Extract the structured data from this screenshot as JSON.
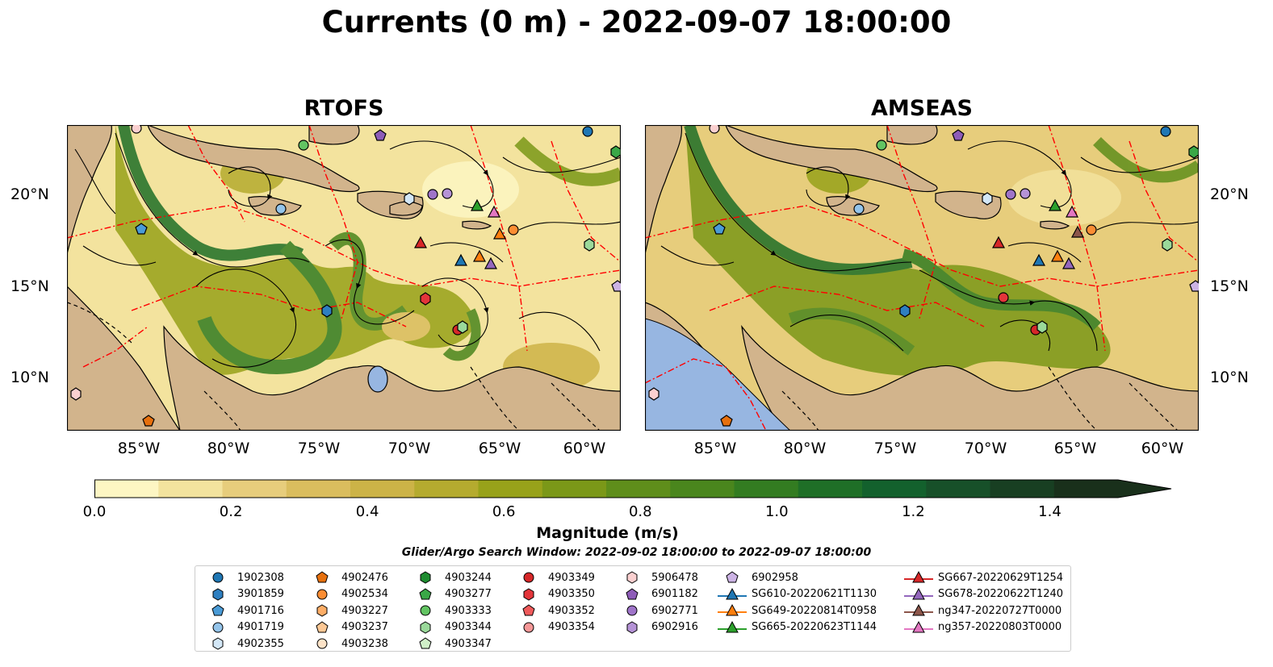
{
  "title": "Currents (0 m) - 2022-09-07 18:00:00",
  "panels": [
    {
      "title": "RTOFS"
    },
    {
      "title": "AMSEAS"
    }
  ],
  "lat_labels": [
    "20°N",
    "15°N",
    "10°N"
  ],
  "lon_labels": [
    "85°W",
    "80°W",
    "75°W",
    "70°W",
    "65°W",
    "60°W"
  ],
  "colorbar": {
    "label": "Magnitude (m/s)",
    "ticks": [
      "0.0",
      "0.2",
      "0.4",
      "0.6",
      "0.8",
      "1.0",
      "1.2",
      "1.4"
    ],
    "colors": [
      "#fdf6c3",
      "#f3e39e",
      "#e7cd7c",
      "#dabd5e",
      "#ccb347",
      "#b5ab2f",
      "#98a21a",
      "#7b9818",
      "#5f8e1b",
      "#4a861d",
      "#337c21",
      "#1f6f27",
      "#13612d",
      "#175029",
      "#183f22",
      "#19301b"
    ]
  },
  "search_window": "Glider/Argo Search Window: 2022-09-02 18:00:00 to 2022-09-07 18:00:00",
  "legend": [
    {
      "label": "1902308",
      "marker": "circle",
      "color": "#1f77b4"
    },
    {
      "label": "3901859",
      "marker": "hexagon",
      "color": "#2e7fc0"
    },
    {
      "label": "4901716",
      "marker": "pentagon",
      "color": "#4a9bd6"
    },
    {
      "label": "4901719",
      "marker": "circle",
      "color": "#94c4ea"
    },
    {
      "label": "4902355",
      "marker": "hexagon",
      "color": "#d3e7f7"
    },
    {
      "label": "4902476",
      "marker": "pentagon",
      "color": "#e6700e"
    },
    {
      "label": "4902534",
      "marker": "circle",
      "color": "#fb8d33"
    },
    {
      "label": "4903227",
      "marker": "hexagon",
      "color": "#fdad66"
    },
    {
      "label": "4903237",
      "marker": "pentagon",
      "color": "#fdc895"
    },
    {
      "label": "4903238",
      "marker": "circle",
      "color": "#fde3c8"
    },
    {
      "label": "4903244",
      "marker": "hexagon",
      "color": "#1e8c30"
    },
    {
      "label": "4903277",
      "marker": "pentagon",
      "color": "#3aa847"
    },
    {
      "label": "4903333",
      "marker": "circle",
      "color": "#62c462"
    },
    {
      "label": "4903344",
      "marker": "hexagon",
      "color": "#9ad99a"
    },
    {
      "label": "4903347",
      "marker": "pentagon",
      "color": "#d0f0c8"
    },
    {
      "label": "4903349",
      "marker": "circle",
      "color": "#d62728"
    },
    {
      "label": "4903350",
      "marker": "hexagon",
      "color": "#e3353a"
    },
    {
      "label": "4903352",
      "marker": "pentagon",
      "color": "#ef5a5b"
    },
    {
      "label": "4903354",
      "marker": "circle",
      "color": "#f59797"
    },
    {
      "label": "5906478",
      "marker": "hexagon",
      "color": "#fbd0d0"
    },
    {
      "label": "6901182",
      "marker": "pentagon",
      "color": "#8e5cb8"
    },
    {
      "label": "6902771",
      "marker": "circle",
      "color": "#9f74c9"
    },
    {
      "label": "6902916",
      "marker": "hexagon",
      "color": "#b593d6"
    },
    {
      "label": "6902958",
      "marker": "pentagon",
      "color": "#ccb3e4"
    },
    {
      "label": "SG610-20220621T1130",
      "marker": "triangle",
      "color": "#1f77b4"
    },
    {
      "label": "SG649-20220814T0958",
      "marker": "triangle",
      "color": "#ff7f0e"
    },
    {
      "label": "SG665-20220623T1144",
      "marker": "triangle",
      "color": "#2ca02c"
    },
    {
      "label": "SG667-20220629T1254",
      "marker": "triangle",
      "color": "#d62728"
    },
    {
      "label": "SG678-20220622T1240",
      "marker": "triangle",
      "color": "#9467bd"
    },
    {
      "label": "ng347-20220727T0000",
      "marker": "triangle",
      "color": "#8c564b"
    },
    {
      "label": "ng357-20220803T0000",
      "marker": "triangle",
      "color": "#e377c2"
    }
  ],
  "colors": {
    "land": "#d2b48c",
    "lake": "#97b6e1",
    "eez": "#ff0000"
  }
}
